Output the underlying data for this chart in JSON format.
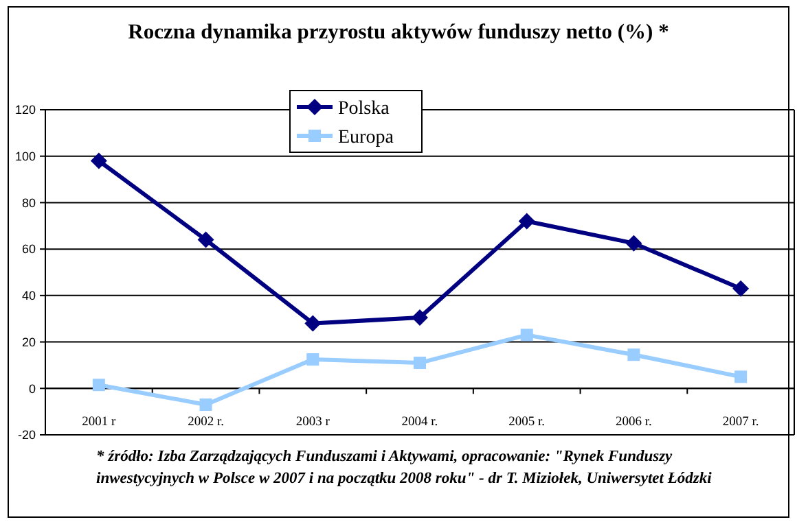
{
  "chart_data": {
    "type": "line",
    "title": "Roczna dynamika przyrostu aktywów funduszy netto (%) *",
    "categories": [
      "2001 r",
      "2002 r.",
      "2003 r",
      "2004 r.",
      "2005 r.",
      "2006 r.",
      "2007 r."
    ],
    "series": [
      {
        "name": "Polska",
        "color": "#000080",
        "marker": "diamond",
        "values": [
          98,
          64,
          28,
          30.5,
          72,
          62.5,
          43
        ]
      },
      {
        "name": "Europa",
        "color": "#99ccff",
        "marker": "square",
        "values": [
          1.5,
          -7,
          12.5,
          11,
          23,
          14.5,
          5
        ]
      }
    ],
    "ylim": [
      -20,
      120
    ],
    "yticks": [
      -20,
      0,
      20,
      40,
      60,
      80,
      100,
      120
    ],
    "grid": "y",
    "legend": "top",
    "annotations": [
      "* źródło: Izba Zarządzających Funduszami i Aktywami, opracowanie: \"Rynek Funduszy inwestycyjnych w Polsce w 2007 i na początku 2008 roku\" - dr T. Miziołek, Uniwersytet Łódzki"
    ]
  }
}
